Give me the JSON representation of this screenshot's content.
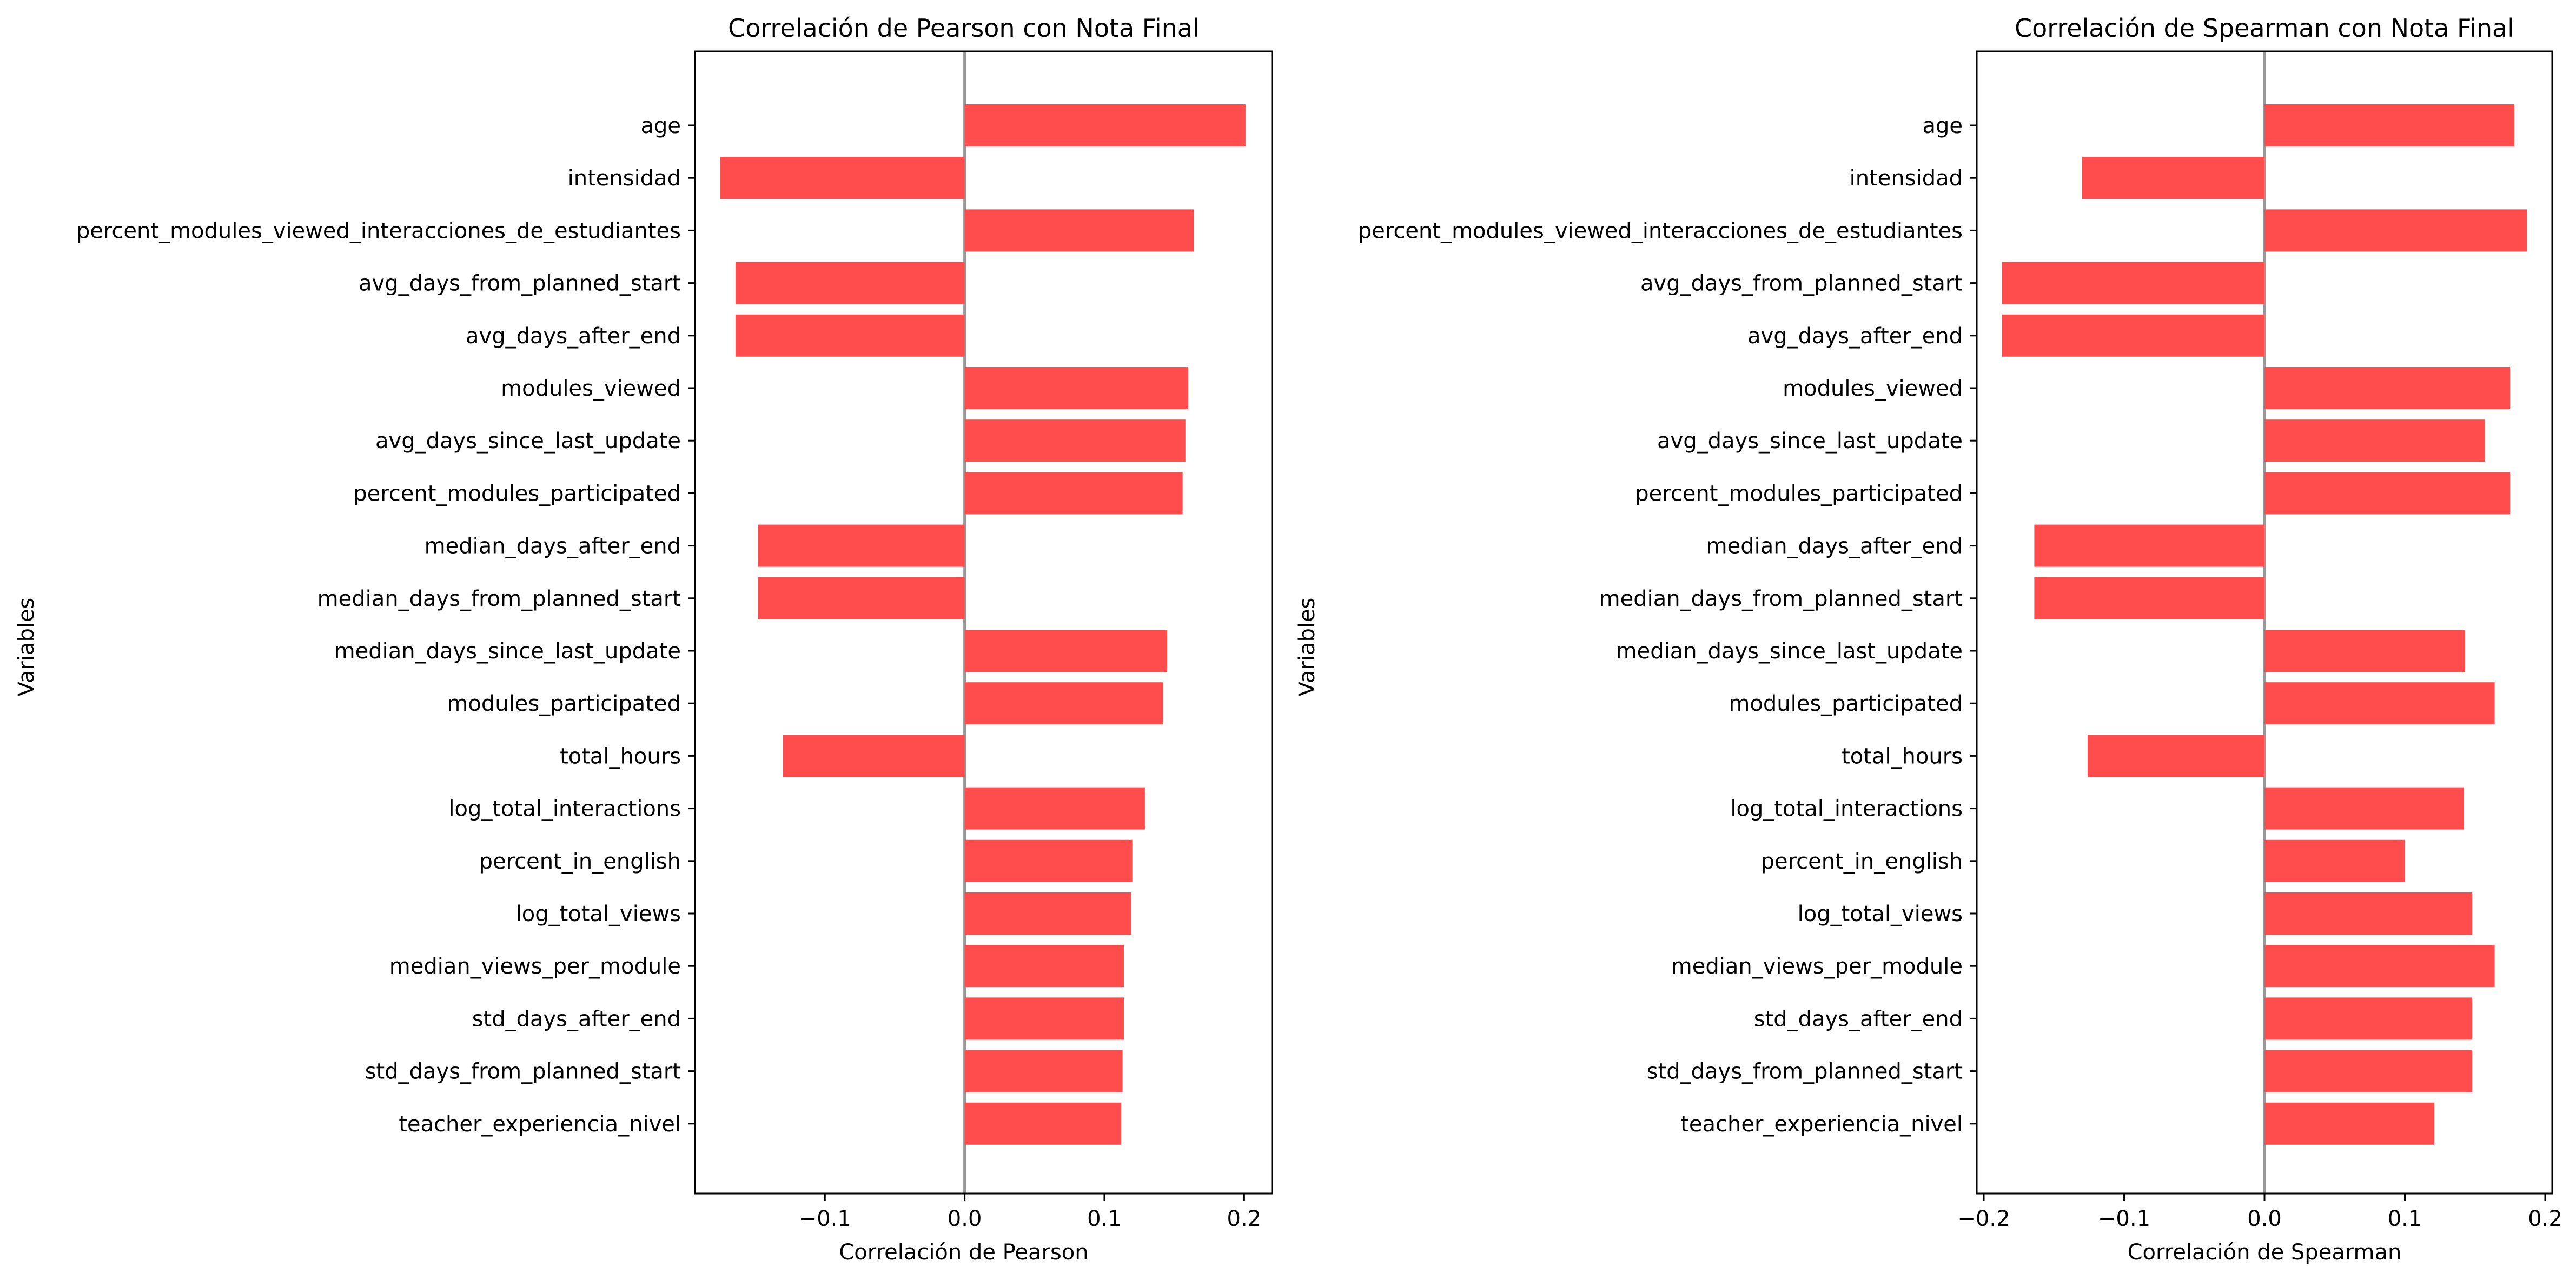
{
  "colors": {
    "bar": "#ff4d4d",
    "zero_line": "#999999",
    "axes": "#000000",
    "background": "#ffffff"
  },
  "chart_data": [
    {
      "type": "bar",
      "orientation": "horizontal",
      "title": "Correlación de Pearson con Nota Final",
      "xlabel": "Correlación de Pearson",
      "ylabel": "Variables",
      "xlim": [
        -0.193,
        0.22
      ],
      "xticks": [
        -0.1,
        0.0,
        0.1,
        0.2
      ],
      "xtick_labels": [
        "−0.1",
        "0.0",
        "0.1",
        "0.2"
      ],
      "grid": false,
      "categories": [
        "age",
        "intensidad",
        "percent_modules_viewed_interacciones_de_estudiantes",
        "avg_days_from_planned_start",
        "avg_days_after_end",
        "modules_viewed",
        "avg_days_since_last_update",
        "percent_modules_participated",
        "median_days_after_end",
        "median_days_from_planned_start",
        "median_days_since_last_update",
        "modules_participated",
        "total_hours",
        "log_total_interactions",
        "percent_in_english",
        "log_total_views",
        "median_views_per_module",
        "std_days_after_end",
        "std_days_from_planned_start",
        "teacher_experiencia_nivel"
      ],
      "values": [
        0.201,
        -0.175,
        0.164,
        -0.164,
        -0.164,
        0.16,
        0.158,
        0.156,
        -0.148,
        -0.148,
        0.145,
        0.142,
        -0.13,
        0.129,
        0.12,
        0.119,
        0.114,
        0.114,
        0.113,
        0.112
      ]
    },
    {
      "type": "bar",
      "orientation": "horizontal",
      "title": "Correlación de Spearman con Nota Final",
      "xlabel": "Correlación de Spearman",
      "ylabel": "Variables",
      "xlim": [
        -0.205,
        0.205
      ],
      "xticks": [
        -0.2,
        -0.1,
        0.0,
        0.1,
        0.2
      ],
      "xtick_labels": [
        "−0.2",
        "−0.1",
        "0.0",
        "0.1",
        "0.2"
      ],
      "grid": false,
      "categories": [
        "age",
        "intensidad",
        "percent_modules_viewed_interacciones_de_estudiantes",
        "avg_days_from_planned_start",
        "avg_days_after_end",
        "modules_viewed",
        "avg_days_since_last_update",
        "percent_modules_participated",
        "median_days_after_end",
        "median_days_from_planned_start",
        "median_days_since_last_update",
        "modules_participated",
        "total_hours",
        "log_total_interactions",
        "percent_in_english",
        "log_total_views",
        "median_views_per_module",
        "std_days_after_end",
        "std_days_from_planned_start",
        "teacher_experiencia_nivel"
      ],
      "values": [
        0.178,
        -0.13,
        0.187,
        -0.187,
        -0.187,
        0.175,
        0.157,
        0.175,
        -0.164,
        -0.164,
        0.143,
        0.164,
        -0.126,
        0.142,
        0.1,
        0.148,
        0.164,
        0.148,
        0.148,
        0.121
      ]
    }
  ]
}
